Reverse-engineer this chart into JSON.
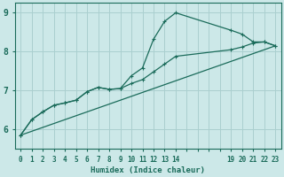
{
  "xlabel": "Humidex (Indice chaleur)",
  "bg_color": "#cce8e8",
  "grid_color": "#aacfcf",
  "line_color": "#1a6b5a",
  "series1": [
    [
      0,
      5.85
    ],
    [
      1,
      6.25
    ],
    [
      2,
      6.45
    ],
    [
      3,
      6.62
    ],
    [
      4,
      6.68
    ],
    [
      5,
      6.75
    ],
    [
      6,
      6.97
    ],
    [
      7,
      7.08
    ],
    [
      8,
      7.03
    ],
    [
      9,
      7.05
    ],
    [
      10,
      7.38
    ],
    [
      11,
      7.58
    ],
    [
      12,
      8.32
    ],
    [
      13,
      8.78
    ],
    [
      14,
      9.0
    ],
    [
      19,
      8.55
    ],
    [
      20,
      8.45
    ],
    [
      21,
      8.25
    ],
    [
      22,
      8.25
    ],
    [
      23,
      8.15
    ]
  ],
  "series2": [
    [
      0,
      5.85
    ],
    [
      1,
      6.25
    ],
    [
      2,
      6.45
    ],
    [
      3,
      6.62
    ],
    [
      4,
      6.68
    ],
    [
      5,
      6.75
    ],
    [
      6,
      6.97
    ],
    [
      7,
      7.08
    ],
    [
      8,
      7.03
    ],
    [
      9,
      7.05
    ],
    [
      10,
      7.18
    ],
    [
      11,
      7.28
    ],
    [
      12,
      7.48
    ],
    [
      13,
      7.68
    ],
    [
      14,
      7.88
    ],
    [
      19,
      8.05
    ],
    [
      20,
      8.12
    ],
    [
      21,
      8.22
    ],
    [
      22,
      8.25
    ],
    [
      23,
      8.15
    ]
  ],
  "series3": [
    [
      0,
      5.85
    ],
    [
      23,
      8.15
    ]
  ],
  "xlim": [
    -0.5,
    23.5
  ],
  "ylim": [
    5.5,
    9.25
  ],
  "all_xticks": [
    0,
    1,
    2,
    3,
    4,
    5,
    6,
    7,
    8,
    9,
    10,
    11,
    12,
    13,
    14,
    15,
    16,
    17,
    18,
    19,
    20,
    21,
    22,
    23
  ],
  "labeled_xticks": [
    0,
    1,
    2,
    3,
    4,
    5,
    6,
    7,
    8,
    9,
    10,
    11,
    12,
    13,
    14,
    19,
    20,
    21,
    22,
    23
  ],
  "yticks": [
    6,
    7,
    8,
    9
  ],
  "markersize": 2.5
}
